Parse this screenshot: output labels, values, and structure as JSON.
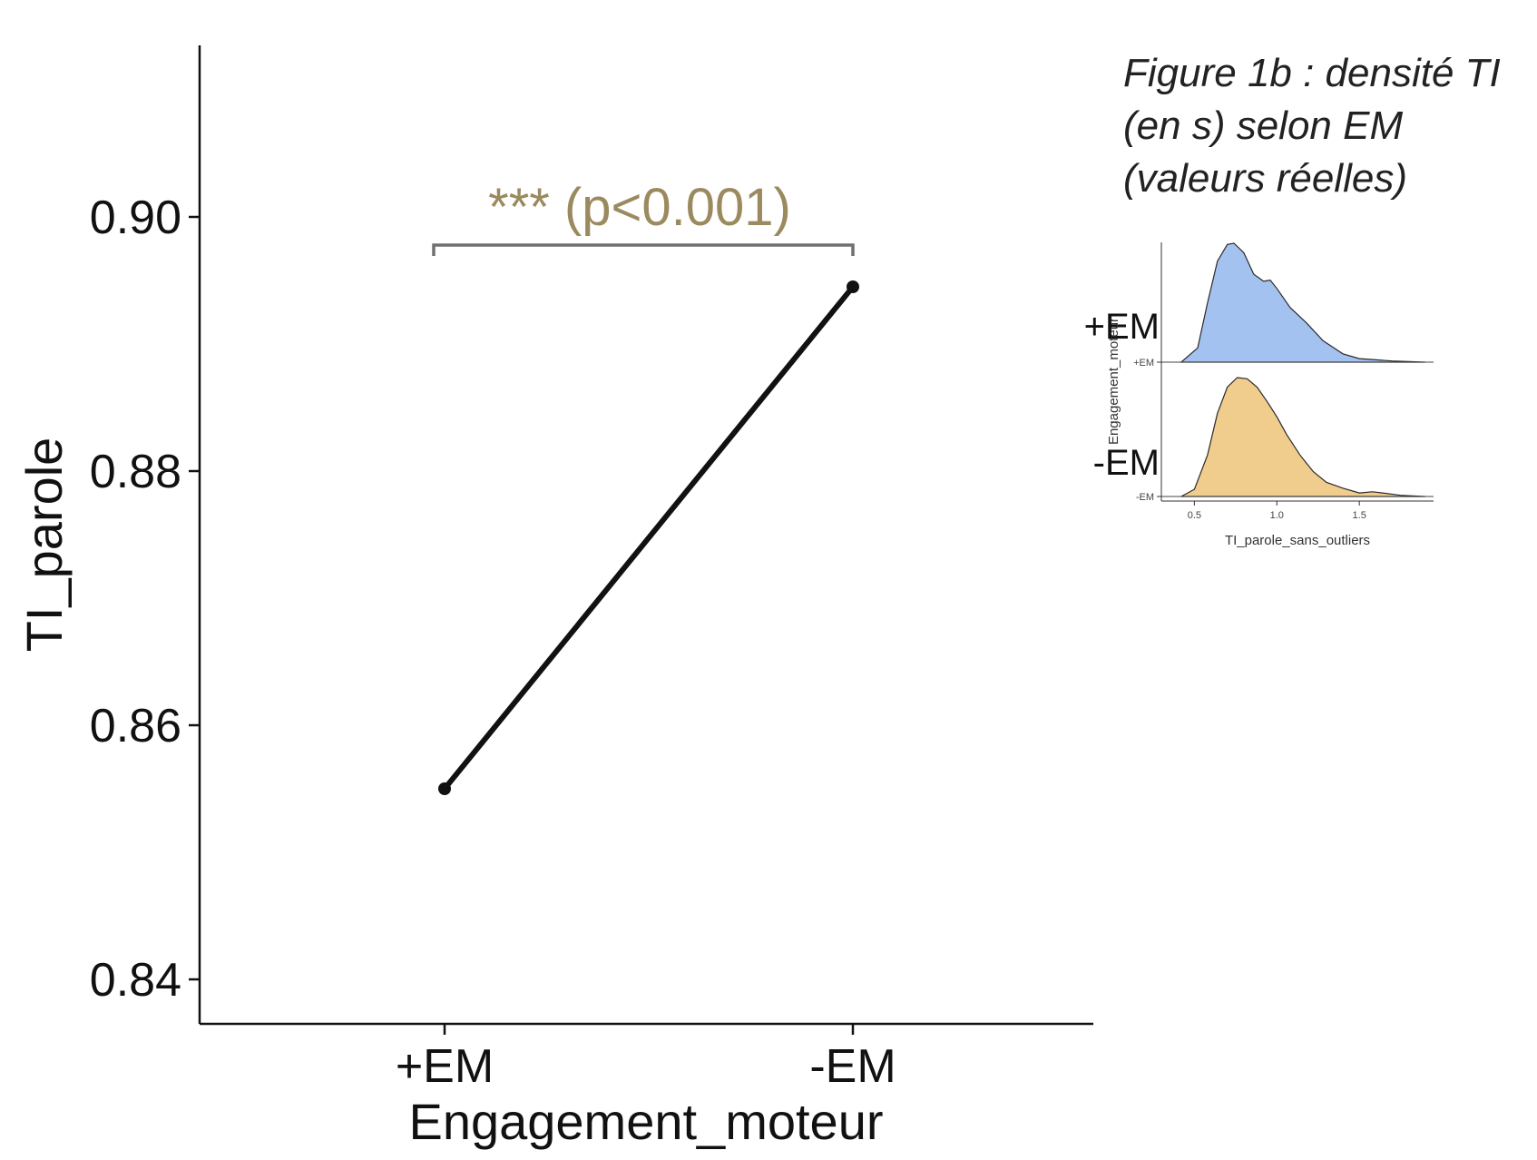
{
  "chart_data": [
    {
      "type": "line",
      "xlabel": "Engagement_moteur",
      "ylabel": "TI_parole",
      "categories": [
        "+EM",
        "-EM"
      ],
      "series": [
        {
          "values": [
            0.855,
            0.8945
          ]
        }
      ],
      "ylim": [
        0.8365,
        0.9135
      ],
      "yticks": [
        0.84,
        0.86,
        0.88,
        0.9
      ],
      "ytick_labels": [
        "0.84",
        "0.86",
        "0.88",
        "0.90"
      ],
      "grid": false,
      "annotation": {
        "text": "*** (p<0.001)",
        "from": "+EM",
        "to": "-EM",
        "color": "#9a8a5e"
      },
      "colors": {
        "line": "#111111",
        "bracket": "#707070"
      }
    },
    {
      "type": "area",
      "subtype": "density-ridges",
      "xlabel": "TI_parole_sans_outliers",
      "ylabel": "Engagement_moteur",
      "xlim": [
        0.3,
        1.95
      ],
      "xticks": [
        0.5,
        1.0,
        1.5
      ],
      "xtick_labels": [
        "0.5",
        "1.0",
        "1.5"
      ],
      "groups": [
        {
          "name": "+EM",
          "big_label": "+EM",
          "color": "#a4c2ef",
          "x": [
            0.42,
            0.52,
            0.58,
            0.64,
            0.7,
            0.74,
            0.8,
            0.86,
            0.92,
            0.96,
            1.0,
            1.08,
            1.18,
            1.28,
            1.4,
            1.5,
            1.6,
            1.7,
            1.8,
            1.9
          ],
          "density": [
            0.0,
            0.12,
            0.5,
            0.85,
            0.99,
            1.0,
            0.92,
            0.74,
            0.68,
            0.69,
            0.62,
            0.46,
            0.33,
            0.18,
            0.07,
            0.03,
            0.02,
            0.01,
            0.005,
            0.0
          ]
        },
        {
          "name": "-EM",
          "big_label": "-EM",
          "color": "#f0cd8d",
          "x": [
            0.42,
            0.5,
            0.58,
            0.64,
            0.7,
            0.76,
            0.82,
            0.88,
            0.94,
            1.0,
            1.06,
            1.14,
            1.22,
            1.3,
            1.4,
            1.5,
            1.58,
            1.64,
            1.75,
            1.9
          ],
          "density": [
            0.0,
            0.06,
            0.35,
            0.7,
            0.92,
            1.0,
            0.99,
            0.92,
            0.8,
            0.67,
            0.52,
            0.35,
            0.21,
            0.12,
            0.07,
            0.03,
            0.04,
            0.03,
            0.01,
            0.0
          ]
        }
      ]
    }
  ],
  "caption": {
    "line1": "Figure 1b : densité TI",
    "line2": "(en s) selon EM",
    "line3": "(valeurs réelles)"
  }
}
